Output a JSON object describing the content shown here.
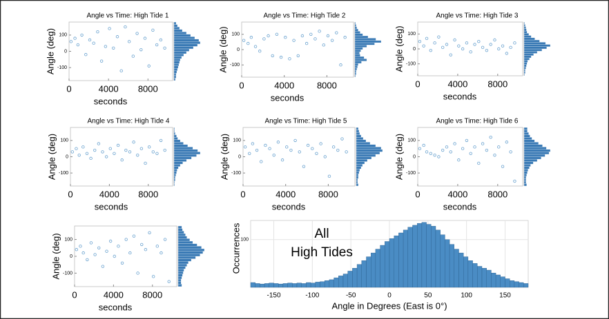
{
  "chart_data": [
    {
      "type": "scatter-hist",
      "title": "Angle vs Time: High Tide 1",
      "x_label": "seconds",
      "y_label": "Angle (deg)",
      "x": [
        200,
        600,
        900,
        1300,
        1700,
        2100,
        2500,
        2900,
        3300,
        3700,
        4100,
        4500,
        4900,
        5300,
        5700,
        6100,
        6500,
        6900,
        7300,
        7700,
        8100,
        8500,
        8900,
        9300,
        9700
      ],
      "values": [
        60,
        80,
        40,
        100,
        -20,
        70,
        50,
        120,
        -60,
        30,
        140,
        20,
        90,
        -120,
        150,
        60,
        -30,
        110,
        10,
        80,
        -90,
        130,
        40,
        70,
        20
      ],
      "xlim": [
        0,
        10500
      ],
      "xticks": [
        0,
        4000,
        8000
      ],
      "ylim": [
        -180,
        180
      ],
      "yticks": [
        -100,
        0,
        100
      ],
      "color": "#2b7bba",
      "bins": [
        -180,
        -165,
        -150,
        -135,
        -120,
        -105,
        -90,
        -75,
        -60,
        -45,
        -30,
        -15,
        0,
        15,
        30,
        45,
        60,
        75,
        90,
        105,
        120,
        135,
        150,
        165,
        180
      ],
      "counts": [
        2,
        3,
        3,
        4,
        5,
        6,
        7,
        8,
        9,
        11,
        14,
        18,
        22,
        28,
        34,
        38,
        36,
        30,
        24,
        18,
        12,
        8,
        5,
        3
      ]
    },
    {
      "type": "scatter-hist",
      "title": "Angle vs Time: High Tide 2",
      "x_label": "seconds",
      "y_label": "Angle (deg)",
      "x": [
        200,
        600,
        900,
        1300,
        1700,
        2100,
        2500,
        2900,
        3300,
        3700,
        4100,
        4500,
        4900,
        5300,
        5700,
        6100,
        6500,
        6900,
        7300,
        7700,
        8100,
        8500,
        8900,
        9300,
        9700
      ],
      "values": [
        60,
        40,
        80,
        20,
        -10,
        70,
        90,
        -40,
        100,
        -50,
        80,
        -60,
        60,
        -40,
        90,
        40,
        100,
        70,
        120,
        30,
        90,
        60,
        110,
        -100,
        80
      ],
      "xlim": [
        0,
        10500
      ],
      "xticks": [
        0,
        4000,
        8000
      ],
      "ylim": [
        -180,
        180
      ],
      "yticks": [
        -100,
        0,
        100
      ],
      "color": "#2b7bba",
      "bins": [
        -180,
        -165,
        -150,
        -135,
        -120,
        -105,
        -90,
        -75,
        -60,
        -45,
        -30,
        -15,
        0,
        15,
        30,
        45,
        60,
        75,
        90,
        105,
        120,
        135,
        150,
        165,
        180
      ],
      "counts": [
        1,
        2,
        2,
        3,
        4,
        5,
        10,
        18,
        14,
        8,
        7,
        9,
        12,
        18,
        30,
        40,
        32,
        20,
        12,
        8,
        5,
        3,
        2,
        1
      ]
    },
    {
      "type": "scatter-hist",
      "title": "Angle vs Time: High Tide 3",
      "x_label": "seconds",
      "y_label": "Angle (deg)",
      "x": [
        200,
        600,
        900,
        1300,
        1700,
        2100,
        2500,
        2900,
        3300,
        3700,
        4100,
        4500,
        4900,
        5300,
        5700,
        6100,
        6500,
        6900,
        7300,
        7700,
        8100,
        8500,
        8900,
        9300,
        9700
      ],
      "values": [
        50,
        20,
        70,
        -10,
        40,
        80,
        10,
        30,
        -40,
        60,
        20,
        0,
        40,
        -20,
        30,
        50,
        10,
        -10,
        30,
        60,
        0,
        20,
        -30,
        10,
        40
      ],
      "xlim": [
        0,
        10500
      ],
      "xticks": [
        0,
        4000,
        8000
      ],
      "ylim": [
        -180,
        180
      ],
      "yticks": [
        -100,
        0,
        100
      ],
      "color": "#2b7bba",
      "bins": [
        -180,
        -165,
        -150,
        -135,
        -120,
        -105,
        -90,
        -75,
        -60,
        -45,
        -30,
        -15,
        0,
        15,
        30,
        45,
        60,
        75,
        90,
        105,
        120,
        135,
        150,
        165,
        180
      ],
      "counts": [
        1,
        2,
        2,
        3,
        4,
        5,
        6,
        9,
        12,
        16,
        22,
        30,
        38,
        44,
        36,
        26,
        18,
        12,
        8,
        5,
        4,
        3,
        2,
        1
      ]
    },
    {
      "type": "scatter-hist",
      "title": "Angle vs Time: High Tide 4",
      "x_label": "seconds",
      "y_label": "Angle (deg)",
      "x": [
        200,
        600,
        900,
        1300,
        1700,
        2100,
        2500,
        2900,
        3300,
        3700,
        4100,
        4500,
        4900,
        5300,
        5700,
        6100,
        6500,
        6900,
        7300,
        7700,
        8100,
        8500,
        8900,
        9300,
        9700
      ],
      "values": [
        30,
        50,
        10,
        60,
        20,
        -10,
        40,
        80,
        30,
        0,
        50,
        20,
        70,
        -20,
        40,
        30,
        90,
        10,
        50,
        -40,
        60,
        30,
        20,
        100,
        40
      ],
      "xlim": [
        0,
        10500
      ],
      "xticks": [
        0,
        4000,
        8000
      ],
      "ylim": [
        -180,
        180
      ],
      "yticks": [
        -100,
        0,
        100
      ],
      "color": "#2b7bba",
      "bins": [
        -180,
        -165,
        -150,
        -135,
        -120,
        -105,
        -90,
        -75,
        -60,
        -45,
        -30,
        -15,
        0,
        15,
        30,
        45,
        60,
        75,
        90,
        105,
        120,
        135,
        150,
        165,
        180
      ],
      "counts": [
        1,
        1,
        2,
        2,
        3,
        4,
        5,
        7,
        10,
        14,
        20,
        28,
        36,
        42,
        38,
        30,
        22,
        15,
        10,
        6,
        4,
        2,
        1,
        1
      ]
    },
    {
      "type": "scatter-hist",
      "title": "Angle vs Time: High Tide 5",
      "x_label": "seconds",
      "y_label": "Angle (deg)",
      "x": [
        200,
        600,
        900,
        1300,
        1700,
        2100,
        2500,
        2900,
        3300,
        3700,
        4100,
        4500,
        4900,
        5300,
        5700,
        6100,
        6500,
        6900,
        7300,
        7700,
        8100,
        8500,
        8900,
        9300,
        9700
      ],
      "values": [
        60,
        20,
        80,
        40,
        -30,
        70,
        50,
        10,
        90,
        -20,
        60,
        40,
        100,
        30,
        -60,
        70,
        50,
        20,
        80,
        0,
        -120,
        60,
        40,
        110,
        30
      ],
      "xlim": [
        0,
        10500
      ],
      "xticks": [
        0,
        4000,
        8000
      ],
      "ylim": [
        -180,
        180
      ],
      "yticks": [
        -100,
        0,
        100
      ],
      "color": "#2b7bba",
      "bins": [
        -180,
        -165,
        -150,
        -135,
        -120,
        -105,
        -90,
        -75,
        -60,
        -45,
        -30,
        -15,
        0,
        15,
        30,
        45,
        60,
        75,
        90,
        105,
        120,
        135,
        150,
        165,
        180
      ],
      "counts": [
        3,
        2,
        2,
        3,
        3,
        4,
        5,
        7,
        9,
        12,
        16,
        22,
        28,
        34,
        38,
        36,
        28,
        20,
        14,
        10,
        7,
        5,
        4,
        3
      ]
    },
    {
      "type": "scatter-hist",
      "title": "Angle vs Time: High Tide 6",
      "x_label": "seconds",
      "y_label": "Angle (deg)",
      "x": [
        200,
        600,
        900,
        1300,
        1700,
        2100,
        2500,
        2900,
        3300,
        3700,
        4100,
        4500,
        4900,
        5300,
        5700,
        6100,
        6500,
        6900,
        7300,
        7700,
        8100,
        8500,
        8900,
        9300,
        9700
      ],
      "values": [
        50,
        70,
        30,
        20,
        10,
        0,
        40,
        60,
        30,
        80,
        -20,
        50,
        100,
        20,
        60,
        -40,
        80,
        40,
        120,
        10,
        60,
        -60,
        90,
        30,
        -150
      ],
      "xlim": [
        0,
        10500
      ],
      "xticks": [
        0,
        4000,
        8000
      ],
      "ylim": [
        -180,
        180
      ],
      "yticks": [
        -100,
        0,
        100
      ],
      "color": "#2b7bba",
      "bins": [
        -180,
        -165,
        -150,
        -135,
        -120,
        -105,
        -90,
        -75,
        -60,
        -45,
        -30,
        -15,
        0,
        15,
        30,
        45,
        60,
        75,
        90,
        105,
        120,
        135,
        150,
        165,
        180
      ],
      "counts": [
        4,
        3,
        3,
        3,
        4,
        5,
        6,
        8,
        10,
        14,
        20,
        26,
        32,
        38,
        40,
        34,
        28,
        22,
        16,
        12,
        9,
        7,
        5,
        5
      ]
    },
    {
      "type": "scatter-hist",
      "x_label": "seconds",
      "y_label": "Angle (deg)",
      "x": [
        200,
        600,
        900,
        1300,
        1700,
        2100,
        2500,
        2900,
        3300,
        3700,
        4100,
        4500,
        4900,
        5300,
        5700,
        6100,
        6500,
        6900,
        7300,
        7700,
        8100,
        8500,
        8900,
        9300,
        9700
      ],
      "values": [
        40,
        60,
        20,
        -20,
        80,
        10,
        50,
        -60,
        30,
        90,
        0,
        60,
        -40,
        100,
        20,
        120,
        -100,
        70,
        40,
        140,
        -120,
        60,
        20,
        100,
        -150
      ],
      "xlim": [
        0,
        10500
      ],
      "xticks": [
        0,
        4000,
        8000
      ],
      "ylim": [
        -180,
        180
      ],
      "yticks": [
        -100,
        0,
        100
      ],
      "color": "#2b7bba",
      "bins": [
        -180,
        -165,
        -150,
        -135,
        -120,
        -105,
        -90,
        -75,
        -60,
        -45,
        -30,
        -15,
        0,
        15,
        30,
        45,
        60,
        75,
        90,
        105,
        120,
        135,
        150,
        165,
        180
      ],
      "counts": [
        5,
        4,
        4,
        5,
        6,
        7,
        8,
        10,
        12,
        14,
        18,
        24,
        30,
        34,
        36,
        32,
        26,
        20,
        16,
        12,
        10,
        8,
        6,
        5
      ]
    },
    {
      "type": "histogram",
      "annotation": [
        "All",
        "High Tides"
      ],
      "x_label": "Angle in Degrees (East is 0°)",
      "y_label": "Occurrences",
      "bins": [
        -180,
        -174,
        -168,
        -162,
        -156,
        -150,
        -144,
        -138,
        -132,
        -126,
        -120,
        -114,
        -108,
        -102,
        -96,
        -90,
        -84,
        -78,
        -72,
        -66,
        -60,
        -54,
        -48,
        -42,
        -36,
        -30,
        -24,
        -18,
        -12,
        -6,
        0,
        6,
        12,
        18,
        24,
        30,
        36,
        42,
        48,
        54,
        60,
        66,
        72,
        78,
        84,
        90,
        96,
        102,
        108,
        114,
        120,
        126,
        132,
        138,
        144,
        150,
        156,
        162,
        168,
        174,
        180
      ],
      "counts": [
        10,
        8,
        7,
        8,
        9,
        8,
        7,
        8,
        9,
        8,
        9,
        8,
        10,
        9,
        11,
        12,
        14,
        16,
        20,
        24,
        28,
        34,
        40,
        48,
        56,
        64,
        72,
        80,
        88,
        96,
        102,
        108,
        114,
        120,
        126,
        130,
        134,
        136,
        132,
        128,
        120,
        110,
        100,
        90,
        80,
        72,
        64,
        56,
        50,
        44,
        40,
        36,
        30,
        26,
        22,
        18,
        14,
        12,
        10,
        8
      ],
      "xlim": [
        -180,
        180
      ],
      "xticks": [
        -150,
        -100,
        -50,
        0,
        50,
        100,
        150
      ],
      "ylim": [
        0,
        140
      ],
      "yticks": [
        100
      ],
      "color": "#4a8cc4",
      "grid": true
    }
  ]
}
